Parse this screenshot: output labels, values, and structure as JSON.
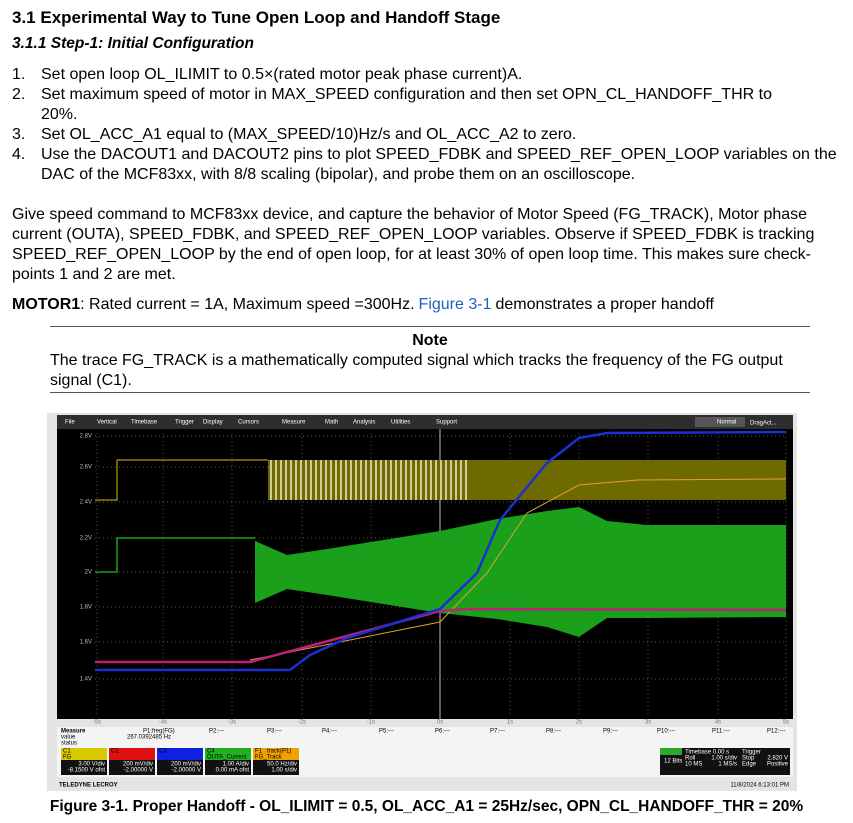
{
  "section": {
    "title": "3.1 Experimental Way to Tune Open Loop and Handoff Stage",
    "subtitle": "3.1.1 Step-1: Initial Configuration"
  },
  "steps": [
    {
      "number": "1.",
      "text": "Set open loop OL_ILIMIT to 0.5×(rated motor peak phase current)A."
    },
    {
      "number": "2.",
      "text": "Set maximum speed of motor in MAX_SPEED configuration and then set OPN_CL_HANDOFF_THR to 20%."
    },
    {
      "number": "3.",
      "text": "Set OL_ACC_A1 equal to (MAX_SPEED/10)Hz/s and OL_ACC_A2 to zero."
    },
    {
      "number": "4.",
      "text": "Use the DACOUT1 and DACOUT2 pins to plot SPEED_FDBK and SPEED_REF_OPEN_LOOP variables on the DAC of the MCF83xx, with 8/8 scaling (bipolar), and probe them on an oscilloscope."
    }
  ],
  "paragraph": "Give speed command to MCF83xx device, and capture the behavior of Motor Speed (FG_TRACK), Motor phase current (OUTA), SPEED_FDBK, and SPEED_REF_OPEN_LOOP variables. Observe if SPEED_FDBK is tracking SPEED_REF_OPEN_LOOP by the end of open loop, for at least 30% of open loop time. This makes sure check-points 1 and 2 are met.",
  "motor": {
    "label": "MOTOR1",
    "text": ": Rated current = 1A, Maximum speed =300Hz.",
    "link": "Figure 3-1",
    "tail": "demonstrates a proper handoff"
  },
  "note": {
    "title": "Note",
    "text": "The trace FG_TRACK is a mathematically computed signal which tracks the frequency of the FG output signal (C1)."
  },
  "scope": {
    "menu": [
      "File",
      "Vertical",
      "Timebase",
      "Trigger",
      "Display",
      "Cursors",
      "Measure",
      "Math",
      "Analysis",
      "Utilities",
      "Support"
    ],
    "mode": "Normal",
    "drag": "DragAct...",
    "y_labels": [
      "2.8V",
      "2.6V",
      "2.4V",
      "2.2V",
      "2V",
      "1.8V",
      "1.6V",
      "1.4V"
    ],
    "x_labels": [
      "-5s",
      "-4s",
      "-3s",
      "-2s",
      "-1s",
      "0s",
      "1s",
      "2s",
      "3s",
      "4s",
      "5s"
    ],
    "measure": {
      "headers": [
        "Measure",
        "value",
        "status"
      ],
      "params": [
        "P1:freq(FG)",
        "P2:---",
        "P3:---",
        "P4:---",
        "P5:---",
        "P6:---",
        "P7:---",
        "P8:---",
        "P9:---",
        "P10:---",
        "P11:---",
        "P12:---"
      ],
      "p1_value": "267.0392485 Hz"
    },
    "channels": [
      {
        "name": "C1",
        "label": "FG",
        "scale": "3.00 V/div",
        "offset": "-8.1500 V ofst"
      },
      {
        "name": "C2",
        "scale": "200 mV/div",
        "offset": "-2.00000 V"
      },
      {
        "name": "C3",
        "scale": "200 mV/div",
        "offset": "-2.00000 V"
      },
      {
        "name": "C4",
        "label": "OUTA_Current",
        "scale": "1.00 A/div",
        "offset": "0.00 mA ofst"
      },
      {
        "name": "F1",
        "label": "FG_Track",
        "header": "track(P1)",
        "scale": "50.0 Hz/div",
        "offset": "1.00 s/div"
      }
    ],
    "acquisition": {
      "bits": "12 Bits",
      "timebase": "Timebase 0.00 s",
      "trigger": "Trigger",
      "mode": "Roll",
      "rate_div": "1.00 s/div",
      "stop": "Stop",
      "level": "2.820 V",
      "samples": "10 MS",
      "rate": "1 MS/s",
      "edge": "Edge",
      "slope": "Positive"
    },
    "timestamp": "11/8/2024 6:13:01 PM",
    "brand": "TELEDYNE LECROY"
  },
  "caption": "Figure 3-1. Proper Handoff - OL_ILIMIT = 0.5, OL_ACC_A1 = 25Hz/sec, OPN_CL_HANDOFF_THR = 20%"
}
